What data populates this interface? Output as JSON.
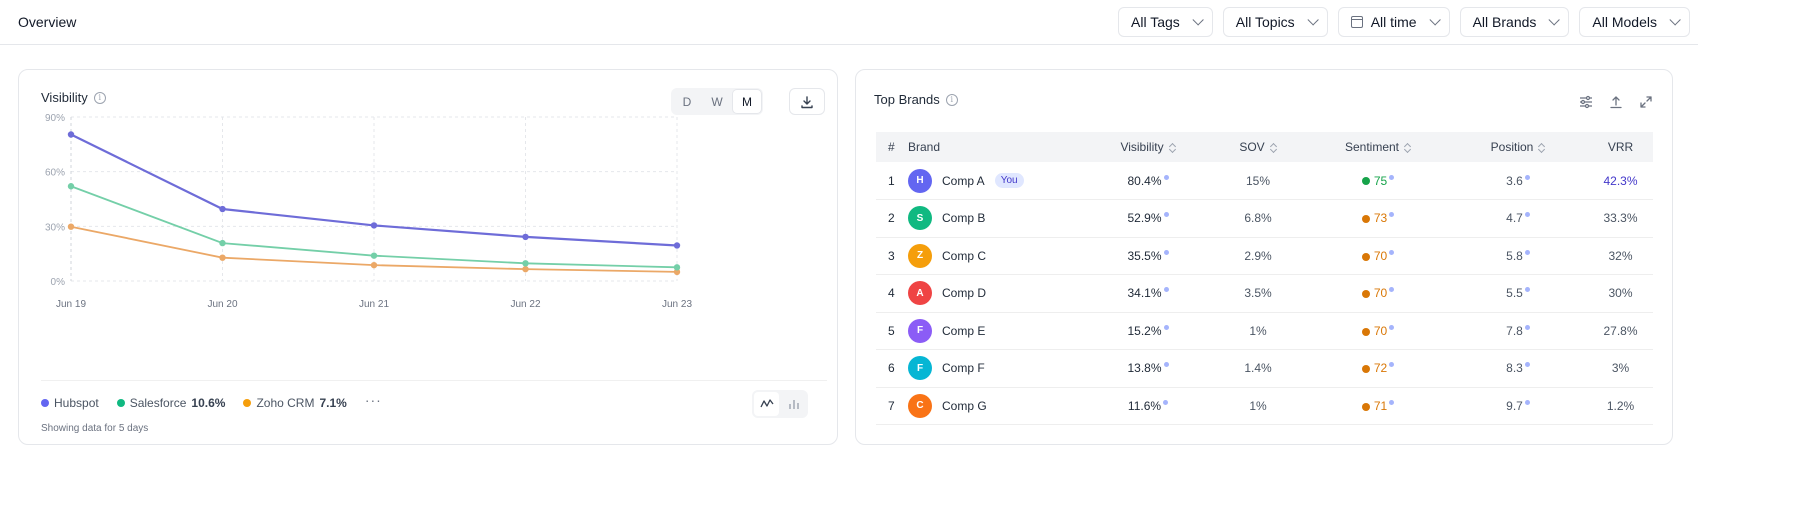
{
  "header": {
    "title": "Overview",
    "filters": [
      "All Tags",
      "All Topics",
      "All time",
      "All Brands",
      "All Models"
    ]
  },
  "visibility_card": {
    "title": "Visibility",
    "granularity": [
      "D",
      "W",
      "M"
    ],
    "active_granularity": "M",
    "legend": [
      {
        "name": "Hubspot",
        "value": "",
        "color": "#6366f1"
      },
      {
        "name": "Salesforce",
        "value": "10.6%",
        "color": "#10b981"
      },
      {
        "name": "Zoho CRM",
        "value": "7.1%",
        "color": "#f59e0b"
      }
    ],
    "more": "···",
    "showing": "Showing data for 5 days"
  },
  "chart_data": {
    "type": "line",
    "x": [
      "Jun 19",
      "Jun 20",
      "Jun 21",
      "Jun 22",
      "Jun 23"
    ],
    "yticks": [
      "0%",
      "30%",
      "60%",
      "90%"
    ],
    "ylim": [
      0,
      90
    ],
    "grid": true,
    "series": [
      {
        "name": "Hubspot",
        "color": "#6e6cd8",
        "values": [
          80.4,
          39.5,
          30.5,
          24.2,
          19.5
        ]
      },
      {
        "name": "Salesforce",
        "color": "#74cfa8",
        "values": [
          52.0,
          20.8,
          13.9,
          9.7,
          7.5
        ]
      },
      {
        "name": "Zoho CRM",
        "color": "#eba867",
        "values": [
          29.8,
          12.8,
          8.7,
          6.5,
          5.0
        ]
      }
    ]
  },
  "brands_card": {
    "title": "Top Brands",
    "columns": [
      "#",
      "Brand",
      "Visibility",
      "SOV",
      "Sentiment",
      "Position",
      "VRR"
    ],
    "you_label": "You",
    "rows": [
      {
        "rank": "1",
        "letter": "H",
        "name": "Comp A",
        "you": true,
        "color": "#6366f1",
        "visibility": "80.4%",
        "sov": "15%",
        "sentiment": "75",
        "sent_color": "#16a34a",
        "position": "3.6",
        "vrr": "42.3%"
      },
      {
        "rank": "2",
        "letter": "S",
        "name": "Comp B",
        "you": false,
        "color": "#10b981",
        "visibility": "52.9%",
        "sov": "6.8%",
        "sentiment": "73",
        "sent_color": "#d97706",
        "position": "4.7",
        "vrr": "33.3%"
      },
      {
        "rank": "3",
        "letter": "Z",
        "name": "Comp C",
        "you": false,
        "color": "#f59e0b",
        "visibility": "35.5%",
        "sov": "2.9%",
        "sentiment": "70",
        "sent_color": "#d97706",
        "position": "5.8",
        "vrr": "32%"
      },
      {
        "rank": "4",
        "letter": "A",
        "name": "Comp D",
        "you": false,
        "color": "#ef4444",
        "visibility": "34.1%",
        "sov": "3.5%",
        "sentiment": "70",
        "sent_color": "#d97706",
        "position": "5.5",
        "vrr": "30%"
      },
      {
        "rank": "5",
        "letter": "F",
        "name": "Comp E",
        "you": false,
        "color": "#8b5cf6",
        "visibility": "15.2%",
        "sov": "1%",
        "sentiment": "70",
        "sent_color": "#d97706",
        "position": "7.8",
        "vrr": "27.8%"
      },
      {
        "rank": "6",
        "letter": "F",
        "name": "Comp F",
        "you": false,
        "color": "#06b6d4",
        "visibility": "13.8%",
        "sov": "1.4%",
        "sentiment": "72",
        "sent_color": "#d97706",
        "position": "8.3",
        "vrr": "3%"
      },
      {
        "rank": "7",
        "letter": "C",
        "name": "Comp G",
        "you": false,
        "color": "#f97316",
        "visibility": "11.6%",
        "sov": "1%",
        "sentiment": "71",
        "sent_color": "#d97706",
        "position": "9.7",
        "vrr": "1.2%"
      }
    ]
  }
}
